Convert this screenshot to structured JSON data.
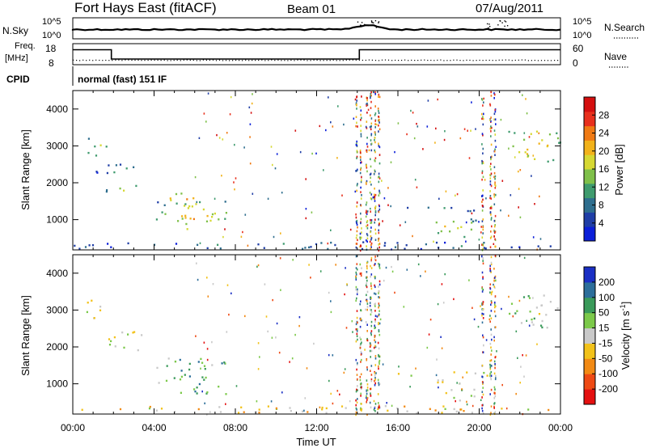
{
  "header": {
    "station": "Fort Hays East (fitACF)",
    "beam": "Beam 01",
    "date": "07/Aug/2011"
  },
  "strip": {
    "nsky_label": "N.Sky",
    "nsky_ticks": [
      "10^5",
      "10^0"
    ],
    "nsearch_label": "N.Search",
    "nsearch_ticks": [
      "10^5",
      "10^0"
    ],
    "freq_label": "Freq.",
    "freq_unit": "[MHz]",
    "freq_ticks": [
      "18",
      "8"
    ],
    "nave_ticks": [
      "60",
      "0"
    ],
    "nave_label": "Nave",
    "cpid_label": "CPID",
    "cpid_value": "normal (fast) 151 IF"
  },
  "chart_data": [
    {
      "type": "heatmap",
      "name": "power",
      "ylabel": "Slant Range [km]",
      "yticks": [
        "4000",
        "3000",
        "2000",
        "1000"
      ],
      "ylim": [
        180,
        4500
      ],
      "xlim_hours": [
        0,
        24
      ],
      "colorbar_label": "Power [dB]",
      "colorbar_ticks": [
        "28",
        "24",
        "20",
        "16",
        "12",
        "8",
        "4"
      ],
      "colorbar_colors": [
        "#0b1fd9",
        "#1f3ea6",
        "#2e6e8e",
        "#3f9b6e",
        "#7fc04a",
        "#d6d833",
        "#f2b21a",
        "#f07a14",
        "#e8301d",
        "#d40f0f"
      ],
      "echo_regions": [
        {
          "t0": 0.6,
          "t1": 1.7,
          "r0": 2700,
          "r1": 3300,
          "level": 0.55
        },
        {
          "t0": 0.9,
          "t1": 3.8,
          "r0": 2200,
          "r1": 2500,
          "level": 0.35
        },
        {
          "t0": 1.6,
          "t1": 3.4,
          "r0": 1700,
          "r1": 2000,
          "level": 0.6
        },
        {
          "t0": 4.6,
          "t1": 6.6,
          "r0": 1400,
          "r1": 1700,
          "level": 0.85
        },
        {
          "t0": 4.0,
          "t1": 7.6,
          "r0": 700,
          "r1": 1500,
          "level": 0.7
        },
        {
          "t0": 5.1,
          "t1": 6.4,
          "r0": 850,
          "r1": 1150,
          "level": 0.9
        },
        {
          "t0": 15.3,
          "t1": 20.5,
          "r0": 1200,
          "r1": 1320,
          "level": 0.3
        },
        {
          "t0": 17.6,
          "t1": 19.8,
          "r0": 500,
          "r1": 1100,
          "level": 0.65
        },
        {
          "t0": 21.4,
          "t1": 24.0,
          "r0": 2500,
          "r1": 3400,
          "level": 0.75
        },
        {
          "t0": 0.0,
          "t1": 24.0,
          "r0": 180,
          "r1": 380,
          "level": 0.25
        }
      ]
    },
    {
      "type": "heatmap",
      "name": "velocity",
      "ylabel": "Slant Range [km]",
      "yticks": [
        "4000",
        "3000",
        "2000",
        "1000"
      ],
      "ylim": [
        180,
        4500
      ],
      "xlim_hours": [
        0,
        24
      ],
      "xticks": [
        "00:00",
        "04:00",
        "08:00",
        "12:00",
        "16:00",
        "20:00",
        "00:00"
      ],
      "xlabel": "Time UT",
      "colorbar_label": "Velocity [m s^-1]",
      "colorbar_ticks": [
        "200",
        "100",
        "50",
        "15",
        "-15",
        "-50",
        "-100",
        "-200"
      ],
      "colorbar_colors": [
        "#1a2fc4",
        "#2c6e9a",
        "#3a9a5a",
        "#7cc94a",
        "#c9c9c9",
        "#f2c21a",
        "#f28a14",
        "#ee4a14",
        "#e41010"
      ],
      "echo_regions": [
        {
          "t0": 0.6,
          "t1": 1.7,
          "r0": 2700,
          "r1": 3300,
          "level": 0.45
        },
        {
          "t0": 1.6,
          "t1": 3.4,
          "r0": 1700,
          "r1": 2400,
          "level": 0.5
        },
        {
          "t0": 4.0,
          "t1": 7.6,
          "r0": 700,
          "r1": 1700,
          "level": 0.3
        },
        {
          "t0": 15.3,
          "t1": 20.5,
          "r0": 1200,
          "r1": 1320,
          "level": 0.45
        },
        {
          "t0": 17.6,
          "t1": 19.8,
          "r0": 500,
          "r1": 1100,
          "level": 0.45
        },
        {
          "t0": 21.4,
          "t1": 24.0,
          "r0": 2500,
          "r1": 3400,
          "level": 0.45
        },
        {
          "t0": 0.0,
          "t1": 24.0,
          "r0": 180,
          "r1": 380,
          "level": 0.6
        }
      ]
    }
  ]
}
